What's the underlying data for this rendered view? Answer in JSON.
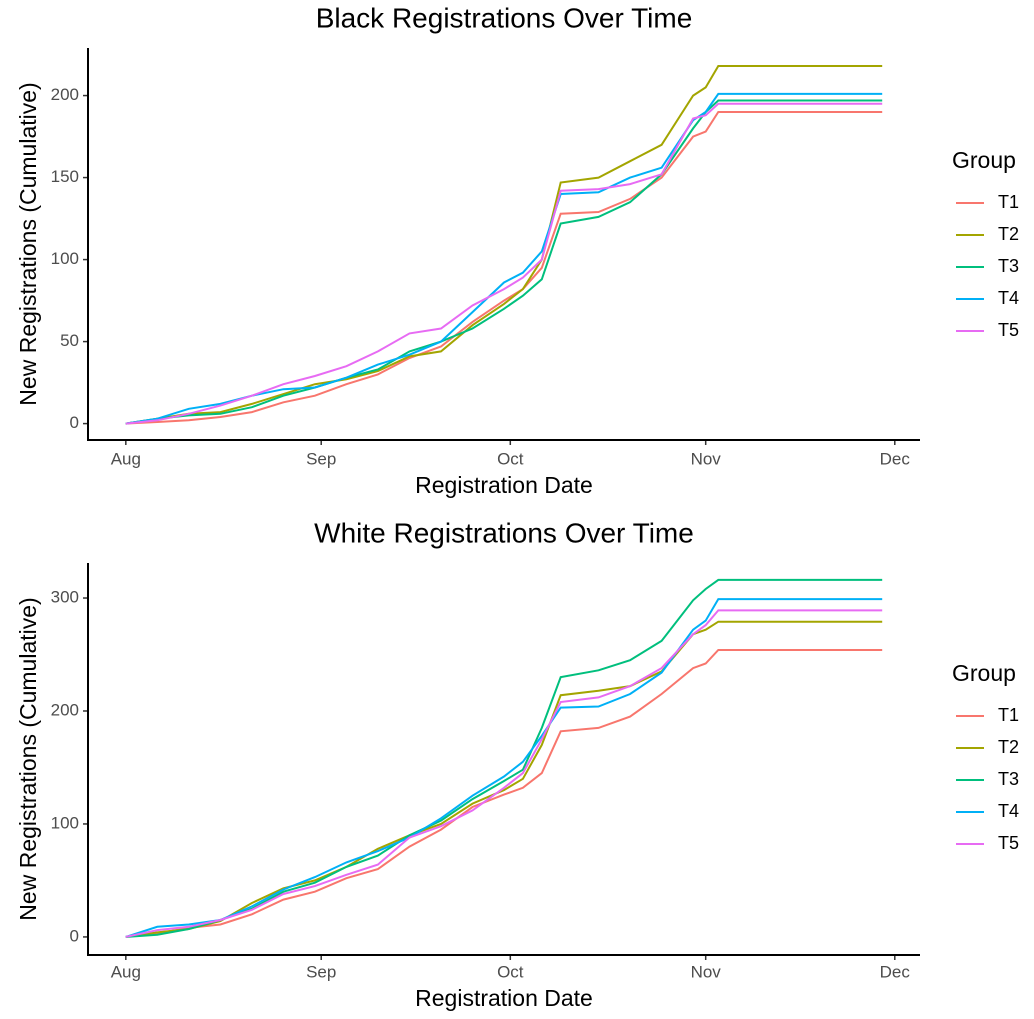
{
  "chart_data": [
    {
      "type": "line",
      "title": "Black Registrations Over Time",
      "x_label": "Registration Date",
      "y_label": "New Registrations (Cumulative)",
      "legend_title": "Group",
      "legend": "right",
      "x": [
        0,
        5,
        10,
        15,
        20,
        25,
        30,
        35,
        40,
        45,
        50,
        55,
        60,
        63,
        66,
        69,
        75,
        80,
        85,
        90,
        92,
        94,
        120
      ],
      "xlim": [
        -6,
        126
      ],
      "xticks": [
        {
          "value": 0,
          "label": "Aug"
        },
        {
          "value": 31,
          "label": "Sep"
        },
        {
          "value": 61,
          "label": "Oct"
        },
        {
          "value": 92,
          "label": "Nov"
        },
        {
          "value": 122,
          "label": "Dec"
        }
      ],
      "ylim": [
        -10,
        229
      ],
      "yticks": [
        0,
        50,
        100,
        150,
        200
      ],
      "series": [
        {
          "name": "T1",
          "color": "#F8766D",
          "values": [
            0,
            1,
            2,
            4,
            7,
            13,
            17,
            24,
            30,
            40,
            47,
            62,
            75,
            82,
            95,
            128,
            129,
            137,
            150,
            175,
            178,
            190,
            190
          ]
        },
        {
          "name": "T2",
          "color": "#A3A500",
          "values": [
            0,
            3,
            6,
            7,
            12,
            18,
            24,
            27,
            32,
            41,
            44,
            60,
            73,
            82,
            100,
            147,
            150,
            160,
            170,
            200,
            205,
            218,
            218
          ]
        },
        {
          "name": "T3",
          "color": "#00BF7D",
          "values": [
            0,
            3,
            5,
            6,
            10,
            17,
            22,
            28,
            33,
            44,
            50,
            58,
            70,
            78,
            88,
            122,
            126,
            135,
            152,
            180,
            190,
            197,
            197
          ]
        },
        {
          "name": "T4",
          "color": "#00B0F6",
          "values": [
            0,
            3,
            9,
            12,
            17,
            21,
            22,
            28,
            36,
            42,
            50,
            68,
            86,
            92,
            105,
            140,
            141,
            150,
            156,
            185,
            190,
            201,
            201
          ]
        },
        {
          "name": "T5",
          "color": "#E76BF3",
          "values": [
            0,
            2,
            6,
            11,
            17,
            24,
            29,
            35,
            44,
            55,
            58,
            72,
            82,
            89,
            100,
            142,
            143,
            146,
            152,
            186,
            188,
            195,
            195
          ]
        }
      ]
    },
    {
      "type": "line",
      "title": "White Registrations Over Time",
      "x_label": "Registration Date",
      "y_label": "New Registrations (Cumulative)",
      "legend_title": "Group",
      "legend": "right",
      "x": [
        0,
        5,
        10,
        15,
        20,
        25,
        30,
        35,
        40,
        45,
        50,
        55,
        60,
        63,
        66,
        69,
        75,
        80,
        85,
        90,
        92,
        94,
        120
      ],
      "xlim": [
        -6,
        126
      ],
      "xticks": [
        {
          "value": 0,
          "label": "Aug"
        },
        {
          "value": 31,
          "label": "Sep"
        },
        {
          "value": 61,
          "label": "Oct"
        },
        {
          "value": 92,
          "label": "Nov"
        },
        {
          "value": 122,
          "label": "Dec"
        }
      ],
      "ylim": [
        -16,
        331
      ],
      "yticks": [
        0,
        100,
        200,
        300
      ],
      "series": [
        {
          "name": "T1",
          "color": "#F8766D",
          "values": [
            0,
            3,
            8,
            11,
            20,
            33,
            40,
            52,
            60,
            80,
            95,
            115,
            126,
            132,
            145,
            182,
            185,
            195,
            215,
            238,
            242,
            254,
            254
          ]
        },
        {
          "name": "T2",
          "color": "#A3A500",
          "values": [
            0,
            4,
            7,
            14,
            30,
            43,
            50,
            62,
            78,
            90,
            100,
            118,
            130,
            140,
            170,
            214,
            218,
            222,
            235,
            268,
            272,
            279,
            279
          ]
        },
        {
          "name": "T3",
          "color": "#00BF7D",
          "values": [
            0,
            2,
            7,
            15,
            25,
            40,
            48,
            62,
            72,
            90,
            103,
            122,
            138,
            148,
            185,
            230,
            236,
            245,
            262,
            298,
            308,
            316,
            316
          ]
        },
        {
          "name": "T4",
          "color": "#00B0F6",
          "values": [
            0,
            9,
            11,
            15,
            27,
            42,
            53,
            66,
            76,
            88,
            105,
            125,
            142,
            155,
            178,
            203,
            204,
            215,
            234,
            272,
            280,
            299,
            299
          ]
        },
        {
          "name": "T5",
          "color": "#E76BF3",
          "values": [
            0,
            6,
            9,
            15,
            24,
            38,
            45,
            55,
            64,
            88,
            98,
            112,
            132,
            145,
            175,
            208,
            212,
            222,
            238,
            268,
            276,
            289,
            289
          ]
        }
      ]
    }
  ]
}
